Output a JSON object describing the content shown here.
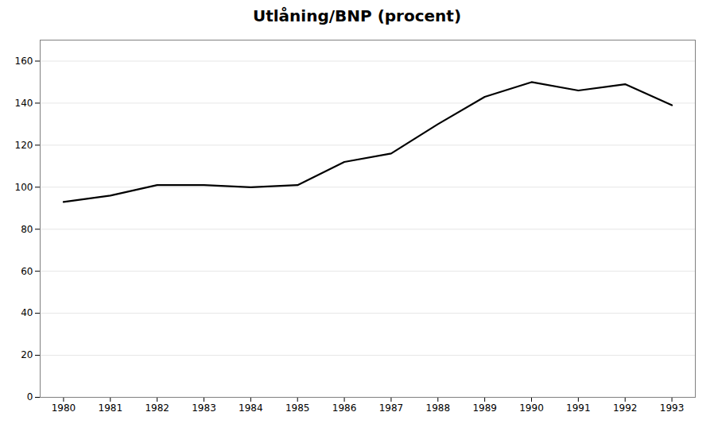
{
  "chart_data": {
    "type": "line",
    "title": "Utlåning/BNP (procent)",
    "x": [
      1980,
      1981,
      1982,
      1983,
      1984,
      1985,
      1986,
      1987,
      1988,
      1989,
      1990,
      1991,
      1992,
      1993
    ],
    "values": [
      93,
      96,
      101,
      101,
      100,
      101,
      112,
      116,
      130,
      143,
      150,
      146,
      149,
      139
    ],
    "color": "#000000",
    "xlim": [
      1979.5,
      1993.5
    ],
    "xticks": [
      1980,
      1981,
      1982,
      1983,
      1984,
      1985,
      1986,
      1987,
      1988,
      1989,
      1990,
      1991,
      1992,
      1993
    ],
    "ylim": [
      0,
      170
    ],
    "yticks": [
      0,
      20,
      40,
      60,
      80,
      100,
      120,
      140,
      160
    ],
    "grid": "y"
  }
}
